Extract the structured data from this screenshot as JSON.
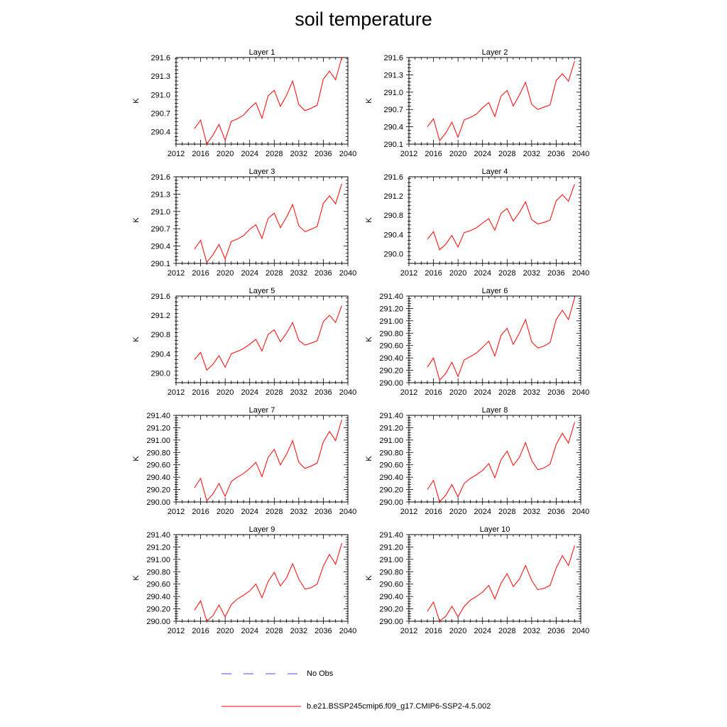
{
  "title": "soil temperature",
  "series_colors": {
    "model": "#ff0000",
    "obs": "#4a4af0"
  },
  "legend": [
    {
      "label": "No Obs",
      "style": "dashed",
      "color": "#4a4af0"
    },
    {
      "label": "b.e21.BSSP245cmip6.f09_g17.CMIP6-SSP2-4.5.002",
      "style": "solid",
      "color": "#ff0000"
    }
  ],
  "chart_data": [
    {
      "type": "line",
      "title": "Layer 1",
      "ylabel": "K",
      "xlim": [
        2012,
        2040
      ],
      "ylim": [
        290.2,
        291.6
      ],
      "x_ticks": [
        "2012",
        "2016",
        "2020",
        "2024",
        "2028",
        "2032",
        "2036",
        "2040"
      ],
      "y_ticks": [
        "290.4",
        "290.7",
        "291.0",
        "291.3",
        "291.6"
      ],
      "x": [
        2015,
        2016,
        2017,
        2018,
        2019,
        2020,
        2021,
        2022,
        2023,
        2024,
        2025,
        2026,
        2027,
        2028,
        2029,
        2030,
        2031,
        2032,
        2033,
        2034,
        2035,
        2036,
        2037,
        2038,
        2039
      ],
      "series": [
        {
          "values": [
            290.45,
            290.59,
            290.2,
            290.34,
            290.52,
            290.26,
            290.57,
            290.61,
            290.67,
            290.78,
            290.87,
            290.62,
            290.98,
            291.07,
            290.81,
            290.99,
            291.22,
            290.84,
            290.74,
            290.78,
            290.83,
            291.25,
            291.38,
            291.24,
            291.6
          ]
        }
      ]
    },
    {
      "type": "line",
      "title": "Layer 2",
      "ylabel": "K",
      "xlim": [
        2012,
        2040
      ],
      "ylim": [
        290.1,
        291.6
      ],
      "x_ticks": [
        "2012",
        "2016",
        "2020",
        "2024",
        "2028",
        "2032",
        "2036",
        "2040"
      ],
      "y_ticks": [
        "290.1",
        "290.4",
        "290.7",
        "291.0",
        "291.3",
        "291.6"
      ],
      "x": [
        2015,
        2016,
        2017,
        2018,
        2019,
        2020,
        2021,
        2022,
        2023,
        2024,
        2025,
        2026,
        2027,
        2028,
        2029,
        2030,
        2031,
        2032,
        2033,
        2034,
        2035,
        2036,
        2037,
        2038,
        2039
      ],
      "series": [
        {
          "values": [
            290.4,
            290.54,
            290.16,
            290.29,
            290.48,
            290.22,
            290.52,
            290.56,
            290.62,
            290.73,
            290.82,
            290.58,
            290.93,
            291.03,
            290.76,
            290.95,
            291.17,
            290.79,
            290.7,
            290.74,
            290.78,
            291.2,
            291.32,
            291.19,
            291.54
          ]
        }
      ]
    },
    {
      "type": "line",
      "title": "Layer 3",
      "ylabel": "K",
      "xlim": [
        2012,
        2040
      ],
      "ylim": [
        290.1,
        291.6
      ],
      "x_ticks": [
        "2012",
        "2016",
        "2020",
        "2024",
        "2028",
        "2032",
        "2036",
        "2040"
      ],
      "y_ticks": [
        "290.1",
        "290.4",
        "290.7",
        "291.0",
        "291.3",
        "291.6"
      ],
      "x": [
        2015,
        2016,
        2017,
        2018,
        2019,
        2020,
        2021,
        2022,
        2023,
        2024,
        2025,
        2026,
        2027,
        2028,
        2029,
        2030,
        2031,
        2032,
        2033,
        2034,
        2035,
        2036,
        2037,
        2038,
        2039
      ],
      "series": [
        {
          "values": [
            290.35,
            290.5,
            290.12,
            290.25,
            290.43,
            290.18,
            290.48,
            290.52,
            290.58,
            290.69,
            290.77,
            290.53,
            290.88,
            290.97,
            290.72,
            290.9,
            291.12,
            290.75,
            290.65,
            290.69,
            290.74,
            291.14,
            291.27,
            291.13,
            291.48
          ]
        }
      ]
    },
    {
      "type": "line",
      "title": "Layer 4",
      "ylabel": "K",
      "xlim": [
        2012,
        2040
      ],
      "ylim": [
        289.8,
        291.6
      ],
      "x_ticks": [
        "2012",
        "2016",
        "2020",
        "2024",
        "2028",
        "2032",
        "2036",
        "2040"
      ],
      "y_ticks": [
        "290.0",
        "290.4",
        "290.8",
        "291.2",
        "291.6"
      ],
      "x": [
        2015,
        2016,
        2017,
        2018,
        2019,
        2020,
        2021,
        2022,
        2023,
        2024,
        2025,
        2026,
        2027,
        2028,
        2029,
        2030,
        2031,
        2032,
        2033,
        2034,
        2035,
        2036,
        2037,
        2038,
        2039
      ],
      "series": [
        {
          "values": [
            290.3,
            290.46,
            290.08,
            290.2,
            290.38,
            290.14,
            290.44,
            290.48,
            290.54,
            290.64,
            290.73,
            290.49,
            290.84,
            290.94,
            290.68,
            290.86,
            291.08,
            290.71,
            290.62,
            290.65,
            290.7,
            291.1,
            291.23,
            291.09,
            291.45
          ]
        }
      ]
    },
    {
      "type": "line",
      "title": "Layer 5",
      "ylabel": "K",
      "xlim": [
        2012,
        2040
      ],
      "ylim": [
        289.8,
        291.6
      ],
      "x_ticks": [
        "2012",
        "2016",
        "2020",
        "2024",
        "2028",
        "2032",
        "2036",
        "2040"
      ],
      "y_ticks": [
        "290.0",
        "290.4",
        "290.8",
        "291.2",
        "291.6"
      ],
      "x": [
        2015,
        2016,
        2017,
        2018,
        2019,
        2020,
        2021,
        2022,
        2023,
        2024,
        2025,
        2026,
        2027,
        2028,
        2029,
        2030,
        2031,
        2032,
        2033,
        2034,
        2035,
        2036,
        2037,
        2038,
        2039
      ],
      "series": [
        {
          "values": [
            290.28,
            290.43,
            290.06,
            290.18,
            290.36,
            290.12,
            290.4,
            290.45,
            290.51,
            290.6,
            290.7,
            290.46,
            290.8,
            290.9,
            290.65,
            290.83,
            291.05,
            290.68,
            290.58,
            290.62,
            290.67,
            291.07,
            291.2,
            291.05,
            291.4
          ]
        }
      ]
    },
    {
      "type": "line",
      "title": "Layer 6",
      "ylabel": "K",
      "xlim": [
        2012,
        2040
      ],
      "ylim": [
        290.0,
        291.4
      ],
      "x_ticks": [
        "2012",
        "2016",
        "2020",
        "2024",
        "2028",
        "2032",
        "2036",
        "2040"
      ],
      "y_ticks": [
        "290.00",
        "290.20",
        "290.40",
        "290.60",
        "290.80",
        "291.00",
        "291.20",
        "291.40"
      ],
      "x": [
        2015,
        2016,
        2017,
        2018,
        2019,
        2020,
        2021,
        2022,
        2023,
        2024,
        2025,
        2026,
        2027,
        2028,
        2029,
        2030,
        2031,
        2032,
        2033,
        2034,
        2035,
        2036,
        2037,
        2038,
        2039
      ],
      "series": [
        {
          "values": [
            290.25,
            290.4,
            290.04,
            290.15,
            290.33,
            290.1,
            290.37,
            290.42,
            290.48,
            290.57,
            290.67,
            290.43,
            290.76,
            290.88,
            290.62,
            290.8,
            291.02,
            290.66,
            290.56,
            290.59,
            290.65,
            291.02,
            291.17,
            291.02,
            291.37
          ]
        }
      ]
    },
    {
      "type": "line",
      "title": "Layer 7",
      "ylabel": "K",
      "xlim": [
        2012,
        2040
      ],
      "ylim": [
        290.0,
        291.4
      ],
      "x_ticks": [
        "2012",
        "2016",
        "2020",
        "2024",
        "2028",
        "2032",
        "2036",
        "2040"
      ],
      "y_ticks": [
        "290.00",
        "290.20",
        "290.40",
        "290.60",
        "290.80",
        "291.00",
        "291.20",
        "291.40"
      ],
      "x": [
        2015,
        2016,
        2017,
        2018,
        2019,
        2020,
        2021,
        2022,
        2023,
        2024,
        2025,
        2026,
        2027,
        2028,
        2029,
        2030,
        2031,
        2032,
        2033,
        2034,
        2035,
        2036,
        2037,
        2038,
        2039
      ],
      "series": [
        {
          "values": [
            290.23,
            290.38,
            290.02,
            290.13,
            290.3,
            290.09,
            290.33,
            290.4,
            290.46,
            290.54,
            290.64,
            290.41,
            290.72,
            290.85,
            290.6,
            290.77,
            290.99,
            290.64,
            290.54,
            290.58,
            290.63,
            290.97,
            291.14,
            290.99,
            291.33
          ]
        }
      ]
    },
    {
      "type": "line",
      "title": "Layer 8",
      "ylabel": "K",
      "xlim": [
        2012,
        2040
      ],
      "ylim": [
        290.0,
        291.4
      ],
      "x_ticks": [
        "2012",
        "2016",
        "2020",
        "2024",
        "2028",
        "2032",
        "2036",
        "2040"
      ],
      "y_ticks": [
        "290.00",
        "290.20",
        "290.40",
        "290.60",
        "290.80",
        "291.00",
        "291.20",
        "291.40"
      ],
      "x": [
        2015,
        2016,
        2017,
        2018,
        2019,
        2020,
        2021,
        2022,
        2023,
        2024,
        2025,
        2026,
        2027,
        2028,
        2029,
        2030,
        2031,
        2032,
        2033,
        2034,
        2035,
        2036,
        2037,
        2038,
        2039
      ],
      "series": [
        {
          "values": [
            290.2,
            290.35,
            290.0,
            290.11,
            290.28,
            290.08,
            290.3,
            290.38,
            290.44,
            290.51,
            290.62,
            290.39,
            290.68,
            290.82,
            290.59,
            290.72,
            290.96,
            290.67,
            290.52,
            290.55,
            290.61,
            290.93,
            291.11,
            290.95,
            291.29
          ]
        }
      ]
    },
    {
      "type": "line",
      "title": "Layer 9",
      "ylabel": "K",
      "xlim": [
        2012,
        2040
      ],
      "ylim": [
        290.0,
        291.4
      ],
      "x_ticks": [
        "2012",
        "2016",
        "2020",
        "2024",
        "2028",
        "2032",
        "2036",
        "2040"
      ],
      "y_ticks": [
        "290.00",
        "290.20",
        "290.40",
        "290.60",
        "290.80",
        "291.00",
        "291.20",
        "291.40"
      ],
      "x": [
        2015,
        2016,
        2017,
        2018,
        2019,
        2020,
        2021,
        2022,
        2023,
        2024,
        2025,
        2026,
        2027,
        2028,
        2029,
        2030,
        2031,
        2032,
        2033,
        2034,
        2035,
        2036,
        2037,
        2038,
        2039
      ],
      "series": [
        {
          "values": [
            290.18,
            290.33,
            290.0,
            290.09,
            290.26,
            290.07,
            290.27,
            290.36,
            290.42,
            290.49,
            290.6,
            290.38,
            290.64,
            290.79,
            290.57,
            290.7,
            290.93,
            290.68,
            290.52,
            290.54,
            290.6,
            290.89,
            291.08,
            290.92,
            291.26
          ]
        }
      ]
    },
    {
      "type": "line",
      "title": "Layer 10",
      "ylabel": "K",
      "xlim": [
        2012,
        2040
      ],
      "ylim": [
        290.0,
        291.4
      ],
      "x_ticks": [
        "2012",
        "2016",
        "2020",
        "2024",
        "2028",
        "2032",
        "2036",
        "2040"
      ],
      "y_ticks": [
        "290.00",
        "290.20",
        "290.40",
        "290.60",
        "290.80",
        "291.00",
        "291.20",
        "291.40"
      ],
      "x": [
        2015,
        2016,
        2017,
        2018,
        2019,
        2020,
        2021,
        2022,
        2023,
        2024,
        2025,
        2026,
        2027,
        2028,
        2029,
        2030,
        2031,
        2032,
        2033,
        2034,
        2035,
        2036,
        2037,
        2038,
        2039
      ],
      "series": [
        {
          "values": [
            290.16,
            290.31,
            290.0,
            290.08,
            290.24,
            290.07,
            290.24,
            290.34,
            290.4,
            290.47,
            290.58,
            290.36,
            290.61,
            290.77,
            290.56,
            290.68,
            290.9,
            290.66,
            290.51,
            290.53,
            290.58,
            290.86,
            291.06,
            290.9,
            291.22
          ]
        }
      ]
    }
  ]
}
